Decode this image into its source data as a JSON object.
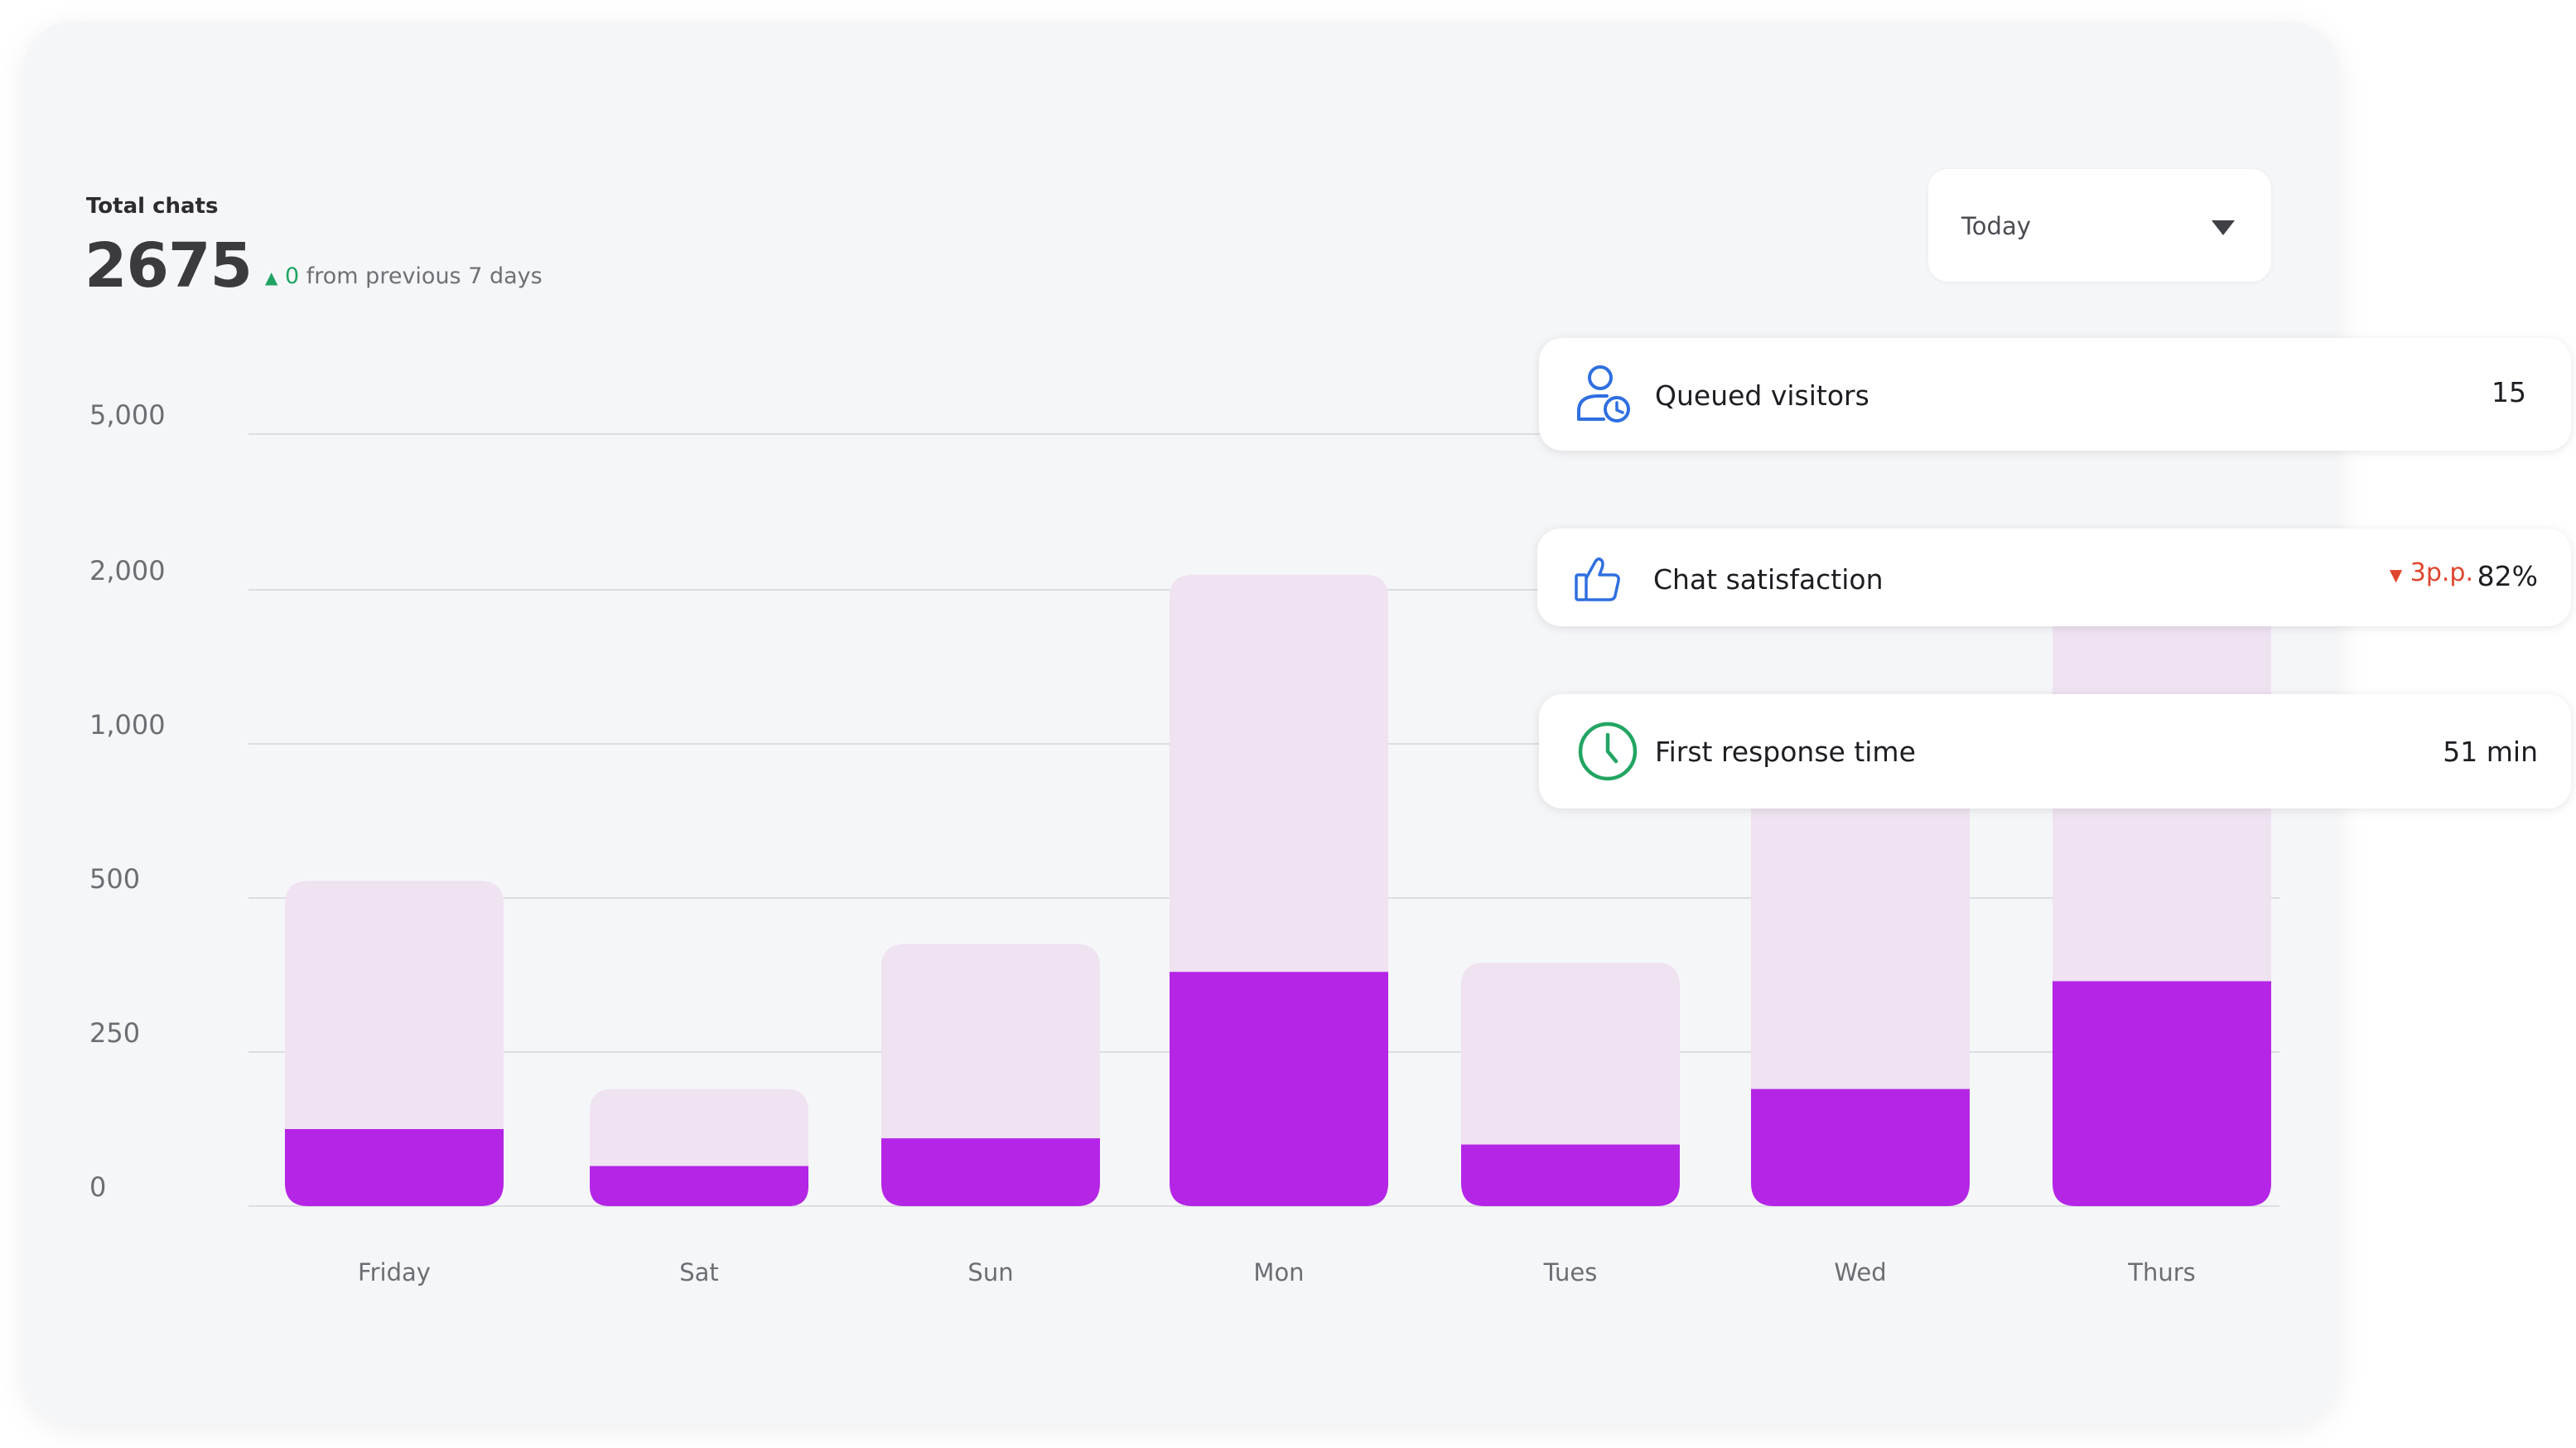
{
  "summary": {
    "label": "Total chats",
    "value": "2675",
    "change_value": "0",
    "change_text": "from previous 7 days",
    "change_arrow": "▲"
  },
  "period_select": {
    "value": "Today"
  },
  "kpis": {
    "queued": {
      "label": "Queued visitors",
      "value": "15",
      "icon": "user-clock-icon"
    },
    "satisfaction": {
      "label": "Chat satisfaction",
      "value": "82%",
      "change": "3p.p.",
      "change_arrow": "▼",
      "icon": "thumbs-up-icon"
    },
    "response": {
      "label": "First response time",
      "value": "51 min",
      "icon": "clock-icon"
    }
  },
  "colors": {
    "bar_dark": "#b425e6",
    "bar_light": "#efe2f1",
    "gridline": "#dcdde1",
    "accent_blue": "#2f6fe0",
    "accent_green": "#22a562",
    "accent_red": "#e0452e"
  },
  "chart_data": {
    "type": "bar",
    "stacked": true,
    "categories": [
      "Friday",
      "Sat",
      "Sun",
      "Mon",
      "Tues",
      "Wed",
      "Thurs"
    ],
    "y_ticks": [
      "5,000",
      "2,000",
      "1,000",
      "500",
      "250",
      "0"
    ],
    "y_tick_values": [
      5000,
      2000,
      1000,
      500,
      250,
      0
    ],
    "series": [
      {
        "values": [
          125,
          65,
          110,
          380,
          100,
          190,
          365
        ]
      },
      {
        "values": [
          430,
          125,
          315,
          1910,
          295,
          985,
          1680
        ]
      }
    ],
    "totals": [
      555,
      190,
      425,
      2290,
      395,
      1175,
      2045
    ],
    "grid": true
  }
}
